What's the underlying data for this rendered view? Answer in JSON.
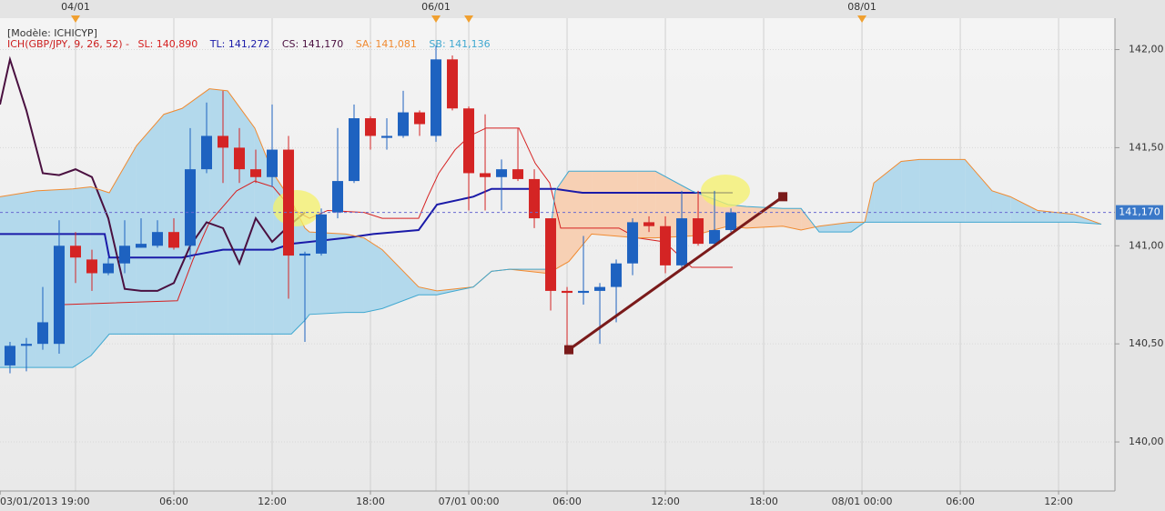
{
  "chart_data": {
    "type": "candlestick",
    "model": "[Modèle: ICHICYP]",
    "indicator": "ICH(GBP/JPY, 9, 26, 52) -",
    "indicator_color": "#cc2020",
    "xlim": [
      -4.61,
      63.44
    ],
    "ylim": [
      139.75,
      142.16
    ],
    "yticks": [
      {
        "value": 140,
        "label": "140,00"
      },
      {
        "value": 140.5,
        "label": "140,50"
      },
      {
        "value": 141,
        "label": "141,00"
      },
      {
        "value": 141.5,
        "label": "141,50"
      },
      {
        "value": 142,
        "label": "142,00"
      }
    ],
    "xticks": [
      {
        "value": -4.6,
        "label": "03/01/2013 19:00"
      },
      {
        "value": 6,
        "label": "06:00"
      },
      {
        "value": 12,
        "label": "12:00"
      },
      {
        "value": 18,
        "label": "18:00"
      },
      {
        "value": 24,
        "label": "07/01 00:00"
      },
      {
        "value": 30,
        "label": "06:00"
      },
      {
        "value": 36,
        "label": "12:00"
      },
      {
        "value": 42,
        "label": "18:00"
      },
      {
        "value": 48,
        "label": "08/01 00:00"
      },
      {
        "value": 54,
        "label": "06:00"
      },
      {
        "value": 60,
        "label": "12:00"
      }
    ],
    "x2ticks": [
      {
        "value": 0,
        "label": "04/01"
      },
      {
        "value": 22,
        "label": "06/01"
      },
      {
        "value": 48,
        "label": "08/01"
      }
    ],
    "top_markers": [
      0,
      22,
      24,
      48
    ],
    "marker_color": "#f0a030",
    "grid": true,
    "up_color": "#1e62c0",
    "down_color": "#d42424",
    "x": [
      -4,
      -3,
      -2,
      -1,
      0,
      1,
      2,
      3,
      4,
      5,
      6,
      7,
      8,
      9,
      10,
      11,
      12,
      13,
      14,
      15,
      16,
      17,
      18,
      19,
      20,
      21,
      22,
      23,
      24,
      25,
      26,
      27,
      28,
      29,
      30,
      31,
      32,
      33,
      34,
      35,
      36,
      37,
      38,
      39,
      40
    ],
    "open": [
      140.39,
      140.49,
      140.5,
      140.5,
      141.0,
      140.93,
      140.86,
      140.91,
      140.99,
      141.0,
      141.07,
      141.0,
      141.39,
      141.56,
      141.5,
      141.39,
      141.35,
      141.49,
      140.95,
      140.96,
      141.17,
      141.33,
      141.65,
      141.55,
      141.56,
      141.68,
      141.56,
      141.95,
      141.7,
      141.37,
      141.35,
      141.39,
      141.34,
      141.14,
      140.77,
      140.76,
      140.77,
      140.79,
      140.91,
      141.12,
      141.1,
      140.9,
      141.14,
      141.01,
      141.08
    ],
    "high": [
      140.51,
      140.53,
      140.79,
      141.13,
      141.07,
      140.98,
      140.94,
      141.13,
      141.14,
      141.13,
      141.14,
      141.6,
      141.73,
      141.79,
      141.6,
      141.49,
      141.72,
      141.56,
      140.97,
      141.19,
      141.6,
      141.72,
      141.66,
      141.65,
      141.79,
      141.69,
      142.02,
      141.97,
      141.71,
      141.67,
      141.44,
      141.6,
      141.39,
      141.14,
      140.79,
      141.05,
      140.81,
      140.93,
      141.14,
      141.15,
      141.15,
      141.28,
      141.28,
      141.28,
      141.19
    ],
    "low": [
      140.35,
      140.36,
      140.47,
      140.45,
      140.81,
      140.77,
      140.85,
      140.86,
      140.99,
      140.99,
      140.98,
      140.93,
      141.37,
      141.32,
      141.32,
      141.32,
      141.3,
      140.73,
      140.51,
      140.95,
      141.14,
      141.32,
      141.49,
      141.49,
      141.55,
      141.56,
      141.53,
      141.69,
      141.18,
      141.18,
      141.18,
      141.33,
      141.09,
      140.67,
      140.47,
      140.7,
      140.5,
      140.61,
      140.85,
      141.07,
      140.86,
      140.88,
      141.0,
      141.0,
      141.07
    ],
    "close": [
      140.49,
      140.5,
      140.61,
      141.0,
      140.94,
      140.86,
      140.91,
      141.0,
      141.01,
      141.07,
      140.99,
      141.39,
      141.56,
      141.5,
      141.39,
      141.35,
      141.49,
      140.95,
      140.96,
      141.16,
      141.33,
      141.65,
      141.56,
      141.56,
      141.68,
      141.62,
      141.95,
      141.7,
      141.37,
      141.35,
      141.39,
      141.34,
      141.14,
      140.77,
      140.76,
      140.77,
      140.79,
      140.91,
      141.12,
      141.1,
      140.9,
      141.14,
      141.01,
      141.08,
      141.17
    ],
    "series": [
      {
        "name": "SL: 140,890",
        "color": "#d62020",
        "x": [
          -0.94,
          -0.72,
          6.22,
          7.17,
          8.17,
          9.83,
          10.94,
          12.06,
          13.17,
          14.28,
          15.39,
          17.61,
          18.72,
          20.94,
          21.5,
          22.17,
          23.17,
          24.06,
          25.06,
          27.06,
          28.06,
          28.94,
          29.61,
          33.17,
          34.28,
          35.94,
          37.61,
          40.11
        ],
        "values": [
          140.61,
          140.7,
          140.72,
          140.93,
          141.12,
          141.28,
          141.33,
          141.3,
          141.19,
          141.14,
          141.18,
          141.17,
          141.14,
          141.14,
          141.25,
          141.37,
          141.49,
          141.56,
          141.6,
          141.6,
          141.42,
          141.32,
          141.09,
          141.09,
          141.04,
          141.02,
          140.89,
          140.89
        ]
      },
      {
        "name": "TL: 141,272",
        "color": "#1a1aa8",
        "x": [
          -4.61,
          1.78,
          2.06,
          6.5,
          7.06,
          9,
          12.06,
          13.17,
          14.28,
          16.5,
          18.17,
          20.94,
          22.06,
          24.28,
          25.39,
          29.28,
          30.94,
          40.11
        ],
        "values": [
          141.06,
          141.06,
          140.94,
          140.94,
          140.95,
          140.98,
          140.98,
          141.01,
          141.02,
          141.04,
          141.06,
          141.08,
          141.21,
          141.25,
          141.29,
          141.29,
          141.27,
          141.27
        ]
      },
      {
        "name": "CS: 141,170",
        "color": "#4a1040",
        "x": [
          -4.61,
          -4,
          -3,
          -2,
          -1,
          0,
          1,
          2,
          3,
          4,
          5,
          6,
          7,
          8,
          9,
          10,
          11,
          12,
          13,
          14
        ],
        "values": [
          141.72,
          141.95,
          141.69,
          141.37,
          141.36,
          141.39,
          141.35,
          141.14,
          140.78,
          140.77,
          140.77,
          140.81,
          141.0,
          141.12,
          141.09,
          140.91,
          141.14,
          141.02,
          141.1,
          141.17
        ]
      },
      {
        "name": "SA: 141,081",
        "color": "#f08a30",
        "x": [
          -4.61,
          -2.39,
          -0.17,
          0.94,
          2.06,
          3.72,
          5.39,
          6.5,
          8.17,
          9.28,
          10.94,
          12.06,
          13.17,
          14,
          14.28,
          16.5,
          17.61,
          18.72,
          20.94,
          22.06,
          23.17,
          24.28,
          25.39,
          26.5,
          28.72,
          29.28,
          30.11,
          31.5,
          34.28,
          35.39,
          37.61,
          39.83,
          40.94,
          43.17,
          44.28,
          45.39,
          47.33,
          48.17,
          48.72,
          50.39,
          51.5,
          54.28,
          55.94,
          57.06,
          58.72,
          60.94,
          62.61
        ],
        "values": [
          141.25,
          141.28,
          141.29,
          141.3,
          141.27,
          141.51,
          141.67,
          141.7,
          141.8,
          141.79,
          141.6,
          141.37,
          141.23,
          141.09,
          141.07,
          141.06,
          141.04,
          140.98,
          140.79,
          140.77,
          140.78,
          140.79,
          140.87,
          140.88,
          140.86,
          140.88,
          140.92,
          141.06,
          141.04,
          141.04,
          141.05,
          141.1,
          141.09,
          141.1,
          141.08,
          141.1,
          141.12,
          141.12,
          141.32,
          141.43,
          141.44,
          141.44,
          141.28,
          141.25,
          141.18,
          141.16,
          141.11
        ]
      },
      {
        "name": "SB: 141,136",
        "color": "#40a8d0",
        "x": [
          -4.61,
          -2.39,
          -0.17,
          0.94,
          2.06,
          3.72,
          5.39,
          6.5,
          8.17,
          9.28,
          10.94,
          12.06,
          13.17,
          14,
          14.28,
          16.5,
          17.61,
          18.72,
          20.94,
          22.06,
          23.17,
          24.28,
          25.39,
          26.5,
          28.72,
          29.28,
          30.11,
          31.5,
          34.28,
          35.39,
          37.61,
          39.83,
          40.94,
          43.17,
          44.28,
          45.39,
          47.33,
          48.17,
          48.72,
          50.39,
          51.5,
          54.28,
          55.94,
          57.06,
          58.72,
          60.94,
          62.61
        ],
        "values": [
          140.38,
          140.38,
          140.38,
          140.44,
          140.55,
          140.55,
          140.55,
          140.55,
          140.55,
          140.55,
          140.55,
          140.55,
          140.55,
          140.62,
          140.65,
          140.66,
          140.66,
          140.68,
          140.75,
          140.75,
          140.77,
          140.79,
          140.87,
          140.88,
          140.88,
          141.28,
          141.38,
          141.38,
          141.38,
          141.38,
          141.28,
          141.21,
          141.2,
          141.19,
          141.19,
          141.07,
          141.07,
          141.12,
          141.12,
          141.12,
          141.12,
          141.12,
          141.12,
          141.12,
          141.12,
          141.12,
          141.11
        ]
      }
    ],
    "cloud": {
      "upper_series": 3,
      "lower_series": 4,
      "bull_color": "#b3d9ec",
      "bear_color": "#f7d0b4"
    },
    "trendline": {
      "x": [
        30.11,
        43.17
      ],
      "values": [
        140.47,
        141.25
      ],
      "color": "#7a1a1a"
    },
    "last_price": {
      "value": 141.17,
      "label": "141,170",
      "color": "#3a78c8"
    }
  }
}
